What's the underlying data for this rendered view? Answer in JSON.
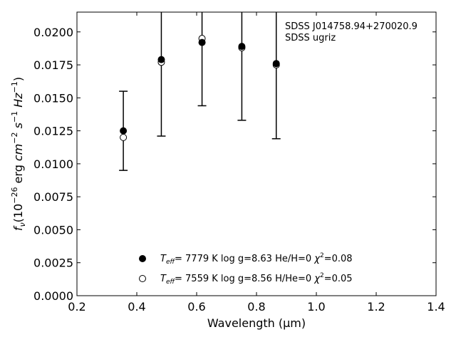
{
  "chart_data": {
    "type": "scatter",
    "xlabel": "Wavelength (μm)",
    "ylabel_parts": {
      "f": "f",
      "nu": "ν",
      "open": "(10",
      "exp26": "−26",
      "erg": " erg ",
      "cm": "cm",
      "expm2": "−2",
      "s": " s",
      "expm1a": "−1",
      "hz": " Hz",
      "expm1b": "−1",
      "close": ")"
    },
    "xlim": [
      0.2,
      1.4
    ],
    "ylim": [
      0.0,
      0.0215
    ],
    "x_ticks": [
      "0.2",
      "0.4",
      "0.6",
      "0.8",
      "1.0",
      "1.2",
      "1.4"
    ],
    "y_ticks": [
      "0.0000",
      "0.0025",
      "0.0050",
      "0.0075",
      "0.0100",
      "0.0125",
      "0.0150",
      "0.0175",
      "0.0200"
    ],
    "annotations": [
      "SDSS J014758.94+270020.9",
      "SDSS ugriz"
    ],
    "observed": {
      "x": [
        0.355,
        0.482,
        0.618,
        0.751,
        0.866
      ],
      "y": [
        0.0125,
        0.0179,
        0.0192,
        0.0189,
        0.0176
      ],
      "err": [
        0.003,
        0.0058,
        0.0048,
        0.0056,
        0.0057
      ]
    },
    "series": [
      {
        "marker": "filled",
        "x": [
          0.355,
          0.482,
          0.618,
          0.751,
          0.866
        ],
        "y": [
          0.0125,
          0.0179,
          0.0192,
          0.0189,
          0.0176
        ],
        "legend": {
          "teff_label": "T",
          "teff_sub": "eff",
          "value": "=  7779 K  log g=8.63  He/H=0  ",
          "chi": "χ",
          "chi_exp": "2",
          "chi_val": "=0.08"
        }
      },
      {
        "marker": "open",
        "x": [
          0.355,
          0.482,
          0.618,
          0.751,
          0.866
        ],
        "y": [
          0.012,
          0.0177,
          0.0195,
          0.0188,
          0.0175
        ],
        "legend": {
          "teff_label": "T",
          "teff_sub": "eff",
          "value": "=  7559 K  log g=8.56  H/He=0  ",
          "chi": "χ",
          "chi_exp": "2",
          "chi_val": "=0.05"
        }
      }
    ]
  }
}
